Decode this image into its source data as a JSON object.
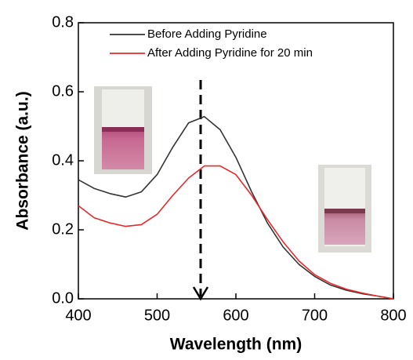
{
  "chart_data": {
    "type": "line",
    "x_label": "Wavelength (nm)",
    "y_label": "Absorbance (a.u.)",
    "x": [
      400,
      420,
      440,
      460,
      480,
      500,
      520,
      540,
      560,
      580,
      600,
      620,
      640,
      660,
      680,
      700,
      720,
      740,
      760,
      780,
      800
    ],
    "series": [
      {
        "name": "Before Adding Pyridine",
        "color": "#333333",
        "values": [
          0.345,
          0.32,
          0.305,
          0.295,
          0.31,
          0.36,
          0.44,
          0.51,
          0.528,
          0.49,
          0.41,
          0.31,
          0.22,
          0.15,
          0.1,
          0.065,
          0.04,
          0.025,
          0.015,
          0.008,
          0.0
        ]
      },
      {
        "name": "After Adding Pyridine for 20 min",
        "color": "#e8282b",
        "values": [
          0.27,
          0.235,
          0.22,
          0.21,
          0.215,
          0.245,
          0.3,
          0.35,
          0.385,
          0.385,
          0.36,
          0.3,
          0.23,
          0.165,
          0.11,
          0.07,
          0.045,
          0.028,
          0.017,
          0.008,
          0.0
        ]
      }
    ],
    "xlim": [
      400,
      800
    ],
    "ylim": [
      0,
      0.8
    ],
    "xticks": [
      400,
      500,
      600,
      700,
      800
    ],
    "yticks": [
      {
        "value": 0,
        "label": "0.0"
      },
      0.2,
      0.4,
      0.6,
      0.8
    ],
    "legend": "upper center",
    "grid": false
  }
}
